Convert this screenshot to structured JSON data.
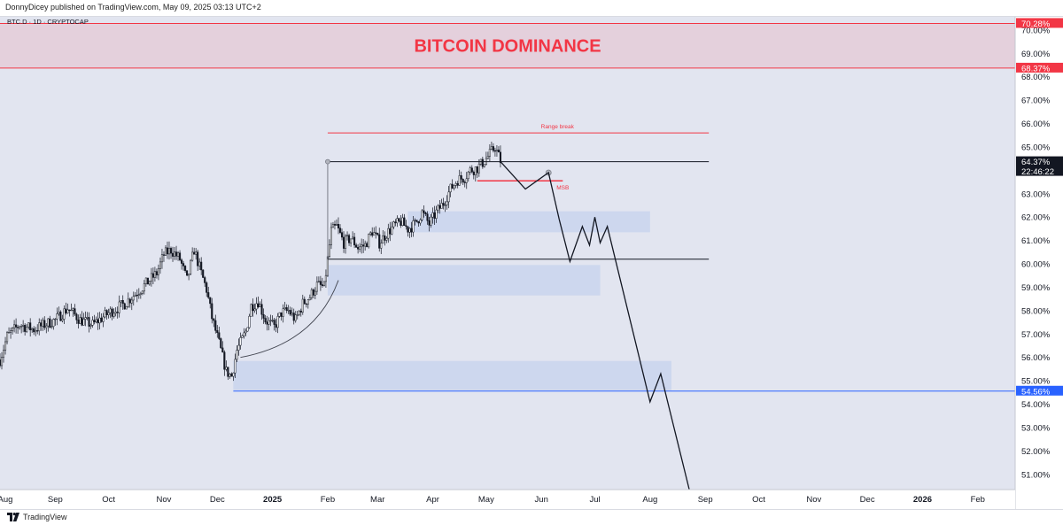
{
  "header": {
    "published": "DonnyDicey published on TradingView.com, May 09, 2025 03:13 UTC+2"
  },
  "footer": {
    "brand": "TradingView"
  },
  "chart_data": {
    "type": "candlestick",
    "symbol_line": "BTC.D · 1D · CRYPTOCAP",
    "title": "BITCOIN DOMINANCE",
    "ylim": [
      50.35,
      70.6
    ],
    "y_ticks": [
      "51.00%",
      "52.00%",
      "53.00%",
      "54.00%",
      "55.00%",
      "56.00%",
      "57.00%",
      "58.00%",
      "59.00%",
      "60.00%",
      "61.00%",
      "62.00%",
      "63.00%",
      "64.00%",
      "65.00%",
      "66.00%",
      "67.00%",
      "68.00%",
      "69.00%",
      "70.00%"
    ],
    "x_range": [
      "2024-08-01",
      "2026-02-22"
    ],
    "x_ticks": [
      {
        "label": "Aug",
        "date": "2024-08-01",
        "bold": false
      },
      {
        "label": "Sep",
        "date": "2024-09-01",
        "bold": false
      },
      {
        "label": "Oct",
        "date": "2024-10-01",
        "bold": false
      },
      {
        "label": "Nov",
        "date": "2024-11-01",
        "bold": false
      },
      {
        "label": "Dec",
        "date": "2024-12-01",
        "bold": false
      },
      {
        "label": "2025",
        "date": "2025-01-01",
        "bold": true
      },
      {
        "label": "Feb",
        "date": "2025-02-01",
        "bold": false
      },
      {
        "label": "Mar",
        "date": "2025-03-01",
        "bold": false
      },
      {
        "label": "Apr",
        "date": "2025-04-01",
        "bold": false
      },
      {
        "label": "May",
        "date": "2025-05-01",
        "bold": false
      },
      {
        "label": "Jun",
        "date": "2025-06-01",
        "bold": false
      },
      {
        "label": "Jul",
        "date": "2025-07-01",
        "bold": false
      },
      {
        "label": "Aug",
        "date": "2025-08-01",
        "bold": false
      },
      {
        "label": "Sep",
        "date": "2025-09-01",
        "bold": false
      },
      {
        "label": "Oct",
        "date": "2025-10-01",
        "bold": false
      },
      {
        "label": "Nov",
        "date": "2025-11-01",
        "bold": false
      },
      {
        "label": "Dec",
        "date": "2025-12-01",
        "bold": false
      },
      {
        "label": "2026",
        "date": "2026-01-01",
        "bold": true
      },
      {
        "label": "Feb",
        "date": "2026-02-01",
        "bold": false
      }
    ],
    "price_keypoints": [
      [
        "2024-08-01",
        55.9
      ],
      [
        "2024-08-05",
        56.9
      ],
      [
        "2024-08-12",
        57.4
      ],
      [
        "2024-08-20",
        57.2
      ],
      [
        "2024-09-01",
        57.6
      ],
      [
        "2024-09-08",
        58.1
      ],
      [
        "2024-09-15",
        57.6
      ],
      [
        "2024-09-22",
        57.4
      ],
      [
        "2024-10-01",
        57.9
      ],
      [
        "2024-10-10",
        58.3
      ],
      [
        "2024-10-20",
        59.0
      ],
      [
        "2024-10-28",
        59.6
      ],
      [
        "2024-11-01",
        60.4
      ],
      [
        "2024-11-05",
        60.6
      ],
      [
        "2024-11-10",
        60.2
      ],
      [
        "2024-11-14",
        59.3
      ],
      [
        "2024-11-18",
        60.6
      ],
      [
        "2024-11-22",
        59.6
      ],
      [
        "2024-11-25",
        58.9
      ],
      [
        "2024-11-28",
        57.7
      ],
      [
        "2024-12-02",
        56.6
      ],
      [
        "2024-12-06",
        55.4
      ],
      [
        "2024-12-09",
        55.2
      ],
      [
        "2024-12-12",
        56.3
      ],
      [
        "2024-12-17",
        57.1
      ],
      [
        "2024-12-20",
        58.2
      ],
      [
        "2024-12-24",
        58.4
      ],
      [
        "2024-12-28",
        57.6
      ],
      [
        "2025-01-02",
        57.3
      ],
      [
        "2025-01-06",
        57.9
      ],
      [
        "2025-01-10",
        58.0
      ],
      [
        "2025-01-14",
        57.6
      ],
      [
        "2025-01-18",
        58.3
      ],
      [
        "2025-01-22",
        58.6
      ],
      [
        "2025-01-26",
        59.1
      ],
      [
        "2025-01-30",
        59.0
      ],
      [
        "2025-02-03",
        61.4
      ],
      [
        "2025-02-06",
        61.6
      ],
      [
        "2025-02-10",
        60.9
      ],
      [
        "2025-02-14",
        61.1
      ],
      [
        "2025-02-18",
        60.7
      ],
      [
        "2025-02-22",
        60.8
      ],
      [
        "2025-02-26",
        61.4
      ],
      [
        "2025-03-02",
        60.9
      ],
      [
        "2025-03-06",
        61.3
      ],
      [
        "2025-03-10",
        61.6
      ],
      [
        "2025-03-14",
        61.8
      ],
      [
        "2025-03-18",
        61.5
      ],
      [
        "2025-03-22",
        61.7
      ],
      [
        "2025-03-26",
        62.2
      ],
      [
        "2025-03-30",
        61.7
      ],
      [
        "2025-04-03",
        62.2
      ],
      [
        "2025-04-07",
        62.6
      ],
      [
        "2025-04-11",
        63.2
      ],
      [
        "2025-04-15",
        63.6
      ],
      [
        "2025-04-19",
        63.7
      ],
      [
        "2025-04-22",
        64.0
      ],
      [
        "2025-04-26",
        64.1
      ],
      [
        "2025-04-30",
        64.4
      ],
      [
        "2025-05-03",
        64.7
      ],
      [
        "2025-05-06",
        65.0
      ],
      [
        "2025-05-09",
        64.4
      ]
    ],
    "series": [
      {
        "type": "projection",
        "points": [
          [
            "2025-05-09",
            64.37
          ],
          [
            "2025-05-23",
            63.2
          ],
          [
            "2025-06-05",
            63.9
          ],
          [
            "2025-06-11",
            61.9
          ],
          [
            "2025-06-17",
            60.1
          ],
          [
            "2025-06-24",
            61.6
          ],
          [
            "2025-06-28",
            60.8
          ],
          [
            "2025-07-01",
            62.0
          ],
          [
            "2025-07-04",
            60.9
          ],
          [
            "2025-07-08",
            61.6
          ],
          [
            "2025-08-01",
            54.1
          ],
          [
            "2025-08-07",
            55.3
          ],
          [
            "2025-08-23",
            50.35
          ]
        ]
      }
    ],
    "levels": [
      {
        "value": 64.37,
        "x0": "2025-02-01",
        "x1": "2025-09-03",
        "color": "#131722"
      },
      {
        "value": 60.2,
        "x0": "2025-02-01",
        "x1": "2025-09-03",
        "color": "#131722"
      },
      {
        "value": 65.6,
        "x0": "2025-02-01",
        "x1": "2025-09-03",
        "color": "#f23645"
      },
      {
        "value": 54.56,
        "x0": "2024-12-10",
        "x1": "2026-02-22",
        "color": "#2962ff"
      },
      {
        "value": 63.55,
        "x0": "2025-04-26",
        "x1": "2025-06-13",
        "color": "#f23645"
      }
    ],
    "zones": [
      {
        "y0": 61.35,
        "y1": 62.25,
        "x0": "2025-03-18",
        "x1": "2025-08-01",
        "color": "#c8d3ee"
      },
      {
        "y0": 58.65,
        "y1": 59.95,
        "x0": "2025-02-01",
        "x1": "2025-07-04",
        "color": "#c8d3ee"
      },
      {
        "y0": 54.6,
        "y1": 55.85,
        "x0": "2024-12-10",
        "x1": "2025-08-13",
        "color": "#c8d3ee"
      }
    ],
    "title_band": {
      "y0": 68.37,
      "y1": 70.28,
      "color": "#f23645"
    },
    "annotations": [
      {
        "text": "Range break",
        "date": "2025-06-10",
        "value": 65.9
      },
      {
        "text": "MSB",
        "date": "2025-06-13",
        "value": 63.3
      }
    ],
    "price_labels": [
      {
        "text": "70.28%",
        "value": 70.28,
        "color": "#f23645"
      },
      {
        "text": "68.37%",
        "value": 68.37,
        "color": "#f23645"
      },
      {
        "text": "54.56%",
        "value": 54.56,
        "color": "#2962ff"
      },
      {
        "text": "64.37%",
        "value": 64.37,
        "color": "#131722",
        "sub": "22:46:22"
      }
    ],
    "colors": {
      "background": "#e2e5f0",
      "candles": "#131722",
      "red": "#f23645",
      "blue": "#2962ff",
      "zone": "#c8d3ee",
      "band_fill": "#e4d0dc"
    }
  }
}
